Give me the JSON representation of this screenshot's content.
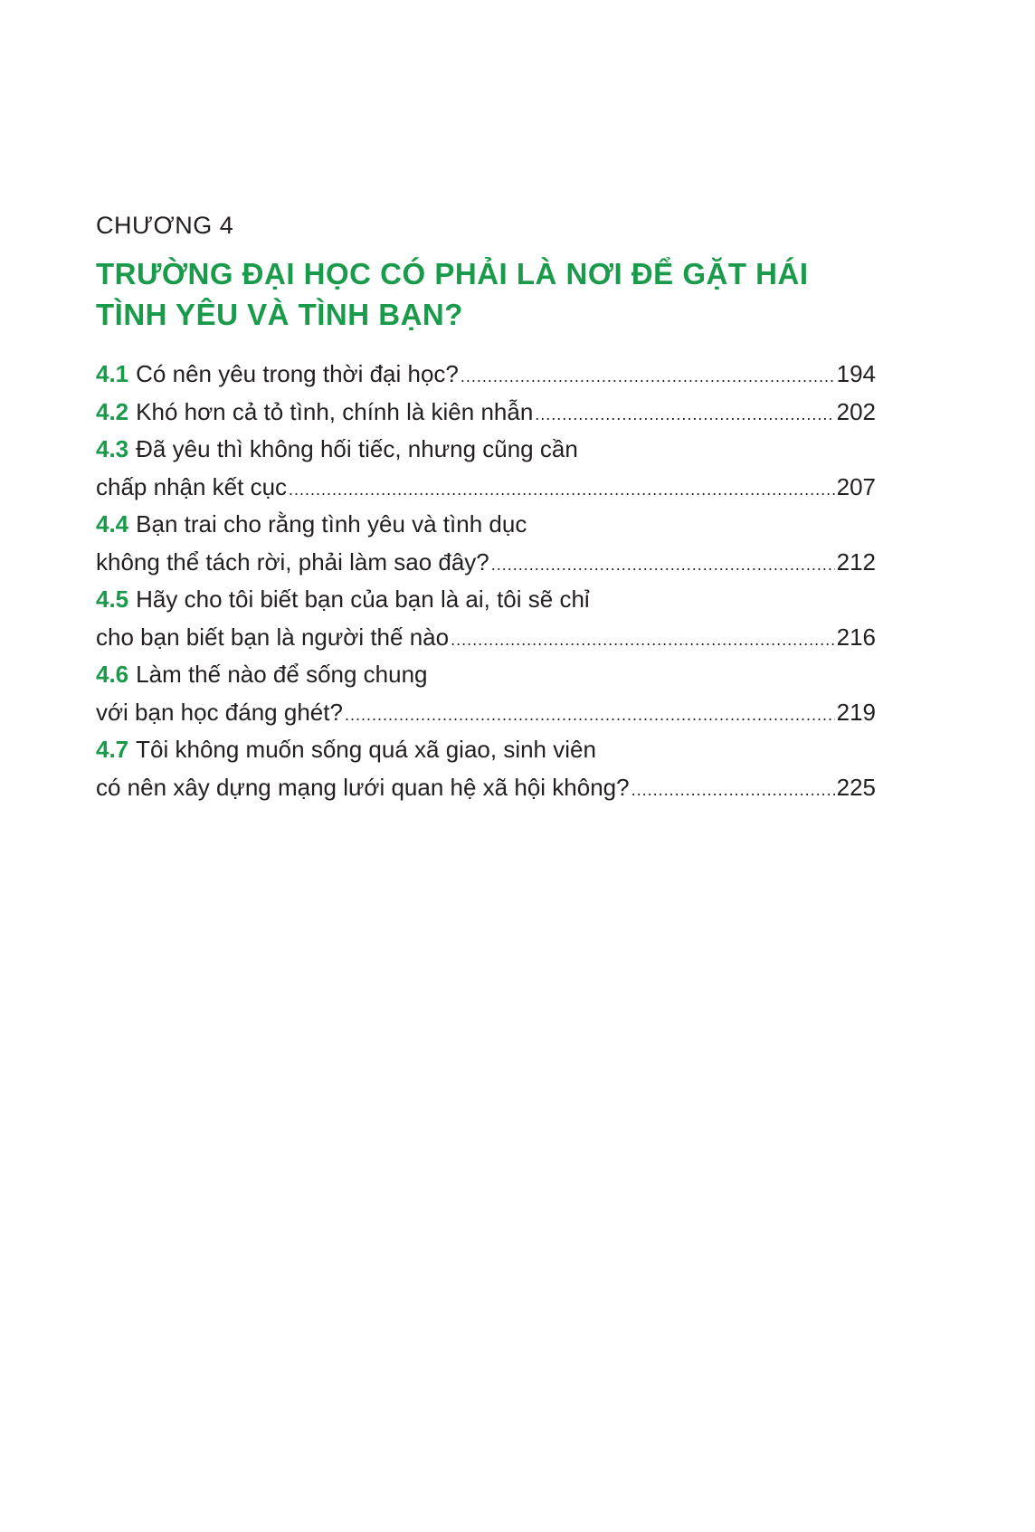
{
  "chapter_label": "CHƯƠNG 4",
  "chapter_title_lines": [
    "TRƯỜNG ĐẠI HỌC CÓ PHẢI LÀ NƠI ĐỂ GẶT HÁI",
    "TÌNH YÊU VÀ TÌNH BẠN?"
  ],
  "accent_color": "#1a9a4b",
  "toc": [
    {
      "num": "4.1",
      "lines": [
        "Có nên yêu trong thời đại học?"
      ],
      "page": "194"
    },
    {
      "num": "4.2",
      "lines": [
        "Khó hơn cả tỏ tình, chính là kiên nhẫn"
      ],
      "page": "202"
    },
    {
      "num": "4.3",
      "lines": [
        "Đã yêu thì không hối tiếc, nhưng cũng cần",
        "chấp nhận kết cục"
      ],
      "page": "207"
    },
    {
      "num": "4.4",
      "lines": [
        "Bạn trai cho rằng tình yêu và tình dục",
        "không thể tách rời, phải làm sao đây?"
      ],
      "page": "212"
    },
    {
      "num": "4.5",
      "lines": [
        "Hãy cho tôi biết bạn của bạn là ai, tôi sẽ chỉ",
        "cho bạn biết bạn là người thế nào"
      ],
      "page": "216"
    },
    {
      "num": "4.6",
      "lines": [
        "Làm thế nào để sống chung",
        "với bạn học đáng ghét?"
      ],
      "page": "219"
    },
    {
      "num": "4.7",
      "lines": [
        "Tôi không muốn sống quá xã giao, sinh viên",
        "có nên xây dựng mạng lưới quan hệ xã hội không?"
      ],
      "page": "225"
    }
  ]
}
